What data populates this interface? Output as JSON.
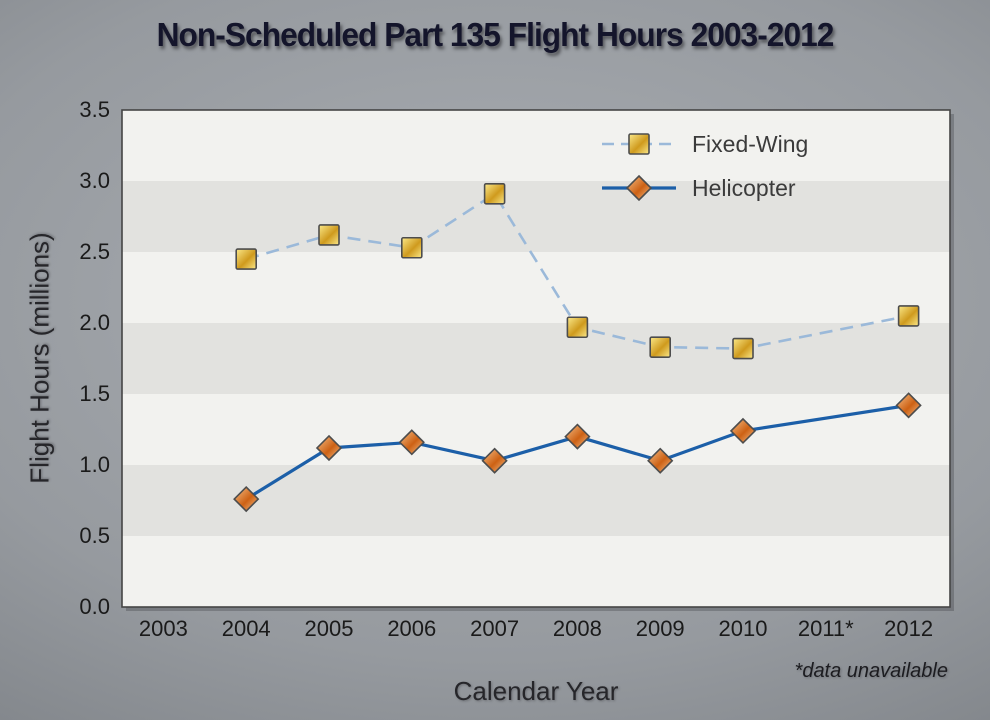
{
  "title": "Non-Scheduled Part 135 Flight Hours 2003-2012",
  "footnote": "*data unavailable",
  "chart_data": {
    "type": "line",
    "title": "Non-Scheduled Part 135 Flight Hours 2003-2012",
    "xlabel": "Calendar Year",
    "ylabel": "Flight Hours (millions)",
    "categories": [
      "2003",
      "2004",
      "2005",
      "2006",
      "2007",
      "2008",
      "2009",
      "2010",
      "2011*",
      "2012"
    ],
    "series": [
      {
        "name": "Fixed-Wing",
        "values": [
          null,
          2.45,
          2.62,
          2.53,
          2.91,
          1.97,
          1.83,
          1.82,
          null,
          2.05
        ],
        "line_color": "#9bb9d9",
        "line_style": "dashed",
        "marker": "square",
        "marker_fill_light": "#fbe98a",
        "marker_fill_dark": "#cf9a1d",
        "marker_stroke": "#4d4d4d"
      },
      {
        "name": "Helicopter",
        "values": [
          null,
          0.76,
          1.12,
          1.16,
          1.03,
          1.2,
          1.03,
          1.24,
          null,
          1.42
        ],
        "line_color": "#1c5fa8",
        "line_style": "solid",
        "marker": "diamond",
        "marker_fill_light": "#f6c38c",
        "marker_fill_dark": "#cd6114",
        "marker_stroke": "#4d4d4d"
      }
    ],
    "ylim": [
      0,
      3.5
    ],
    "ytick_step": 0.5,
    "ytick_labels": [
      "0.0",
      "0.5",
      "1.0",
      "1.5",
      "2.0",
      "2.5",
      "3.0",
      "3.5"
    ],
    "grid": "banded",
    "band_color_light": "#f2f2ef",
    "band_color_dark": "#e2e2df",
    "plot_border_color": "#454545",
    "tick_label_color": "#1a1a1a",
    "legend_position": "top-right",
    "legend_text_color": "#3b3b3b",
    "note": "2011 data unavailable"
  }
}
